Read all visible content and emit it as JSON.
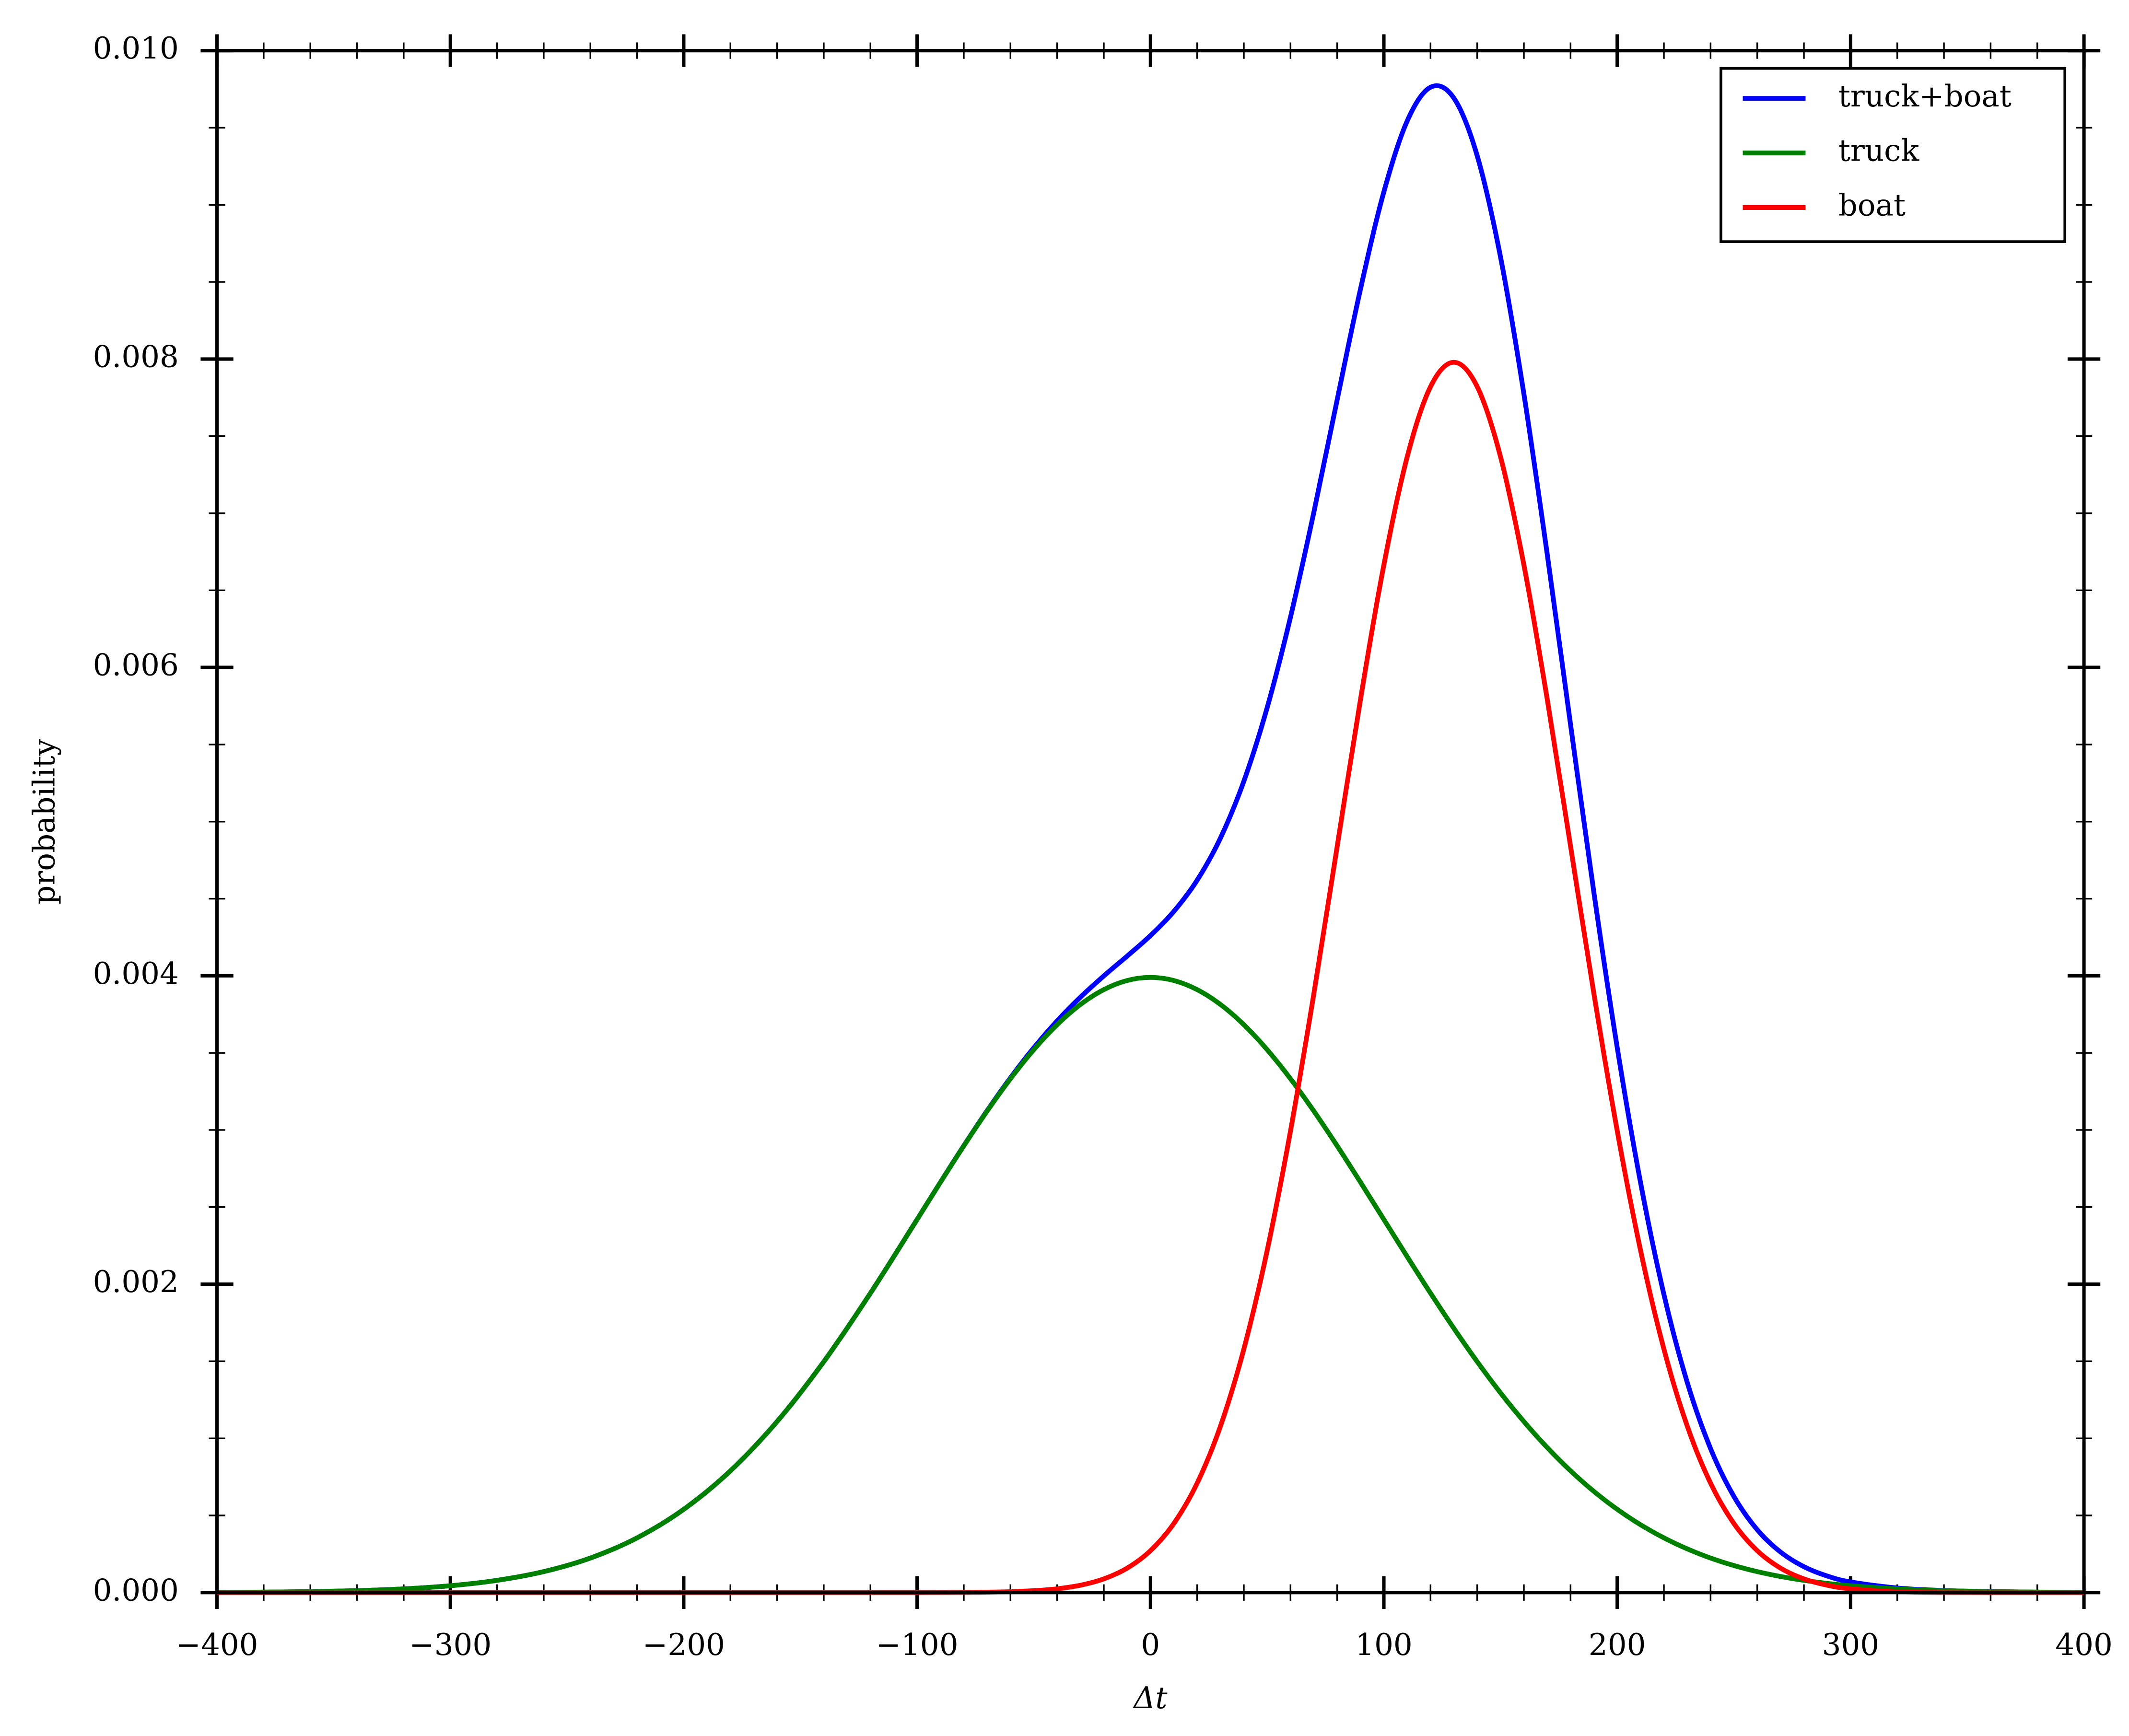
{
  "chart_data": {
    "type": "line",
    "x_label": "Δt",
    "y_label": "probability",
    "x": [
      -400,
      -380,
      -360,
      -340,
      -320,
      -300,
      -280,
      -260,
      -240,
      -220,
      -200,
      -180,
      -160,
      -140,
      -120,
      -100,
      -90,
      -80,
      -70,
      -60,
      -50,
      -40,
      -30,
      -20,
      -10,
      0,
      10,
      20,
      30,
      40,
      50,
      60,
      70,
      80,
      90,
      100,
      110,
      120,
      130,
      140,
      150,
      160,
      170,
      180,
      190,
      200,
      210,
      220,
      230,
      240,
      250,
      260,
      270,
      280,
      290,
      300,
      320,
      340,
      360,
      380,
      400
    ],
    "series": [
      {
        "name": "truck+boat",
        "color": "#0000ff",
        "values": [
          1.3e-06,
          2.9e-06,
          6.1e-06,
          1.23e-05,
          2.38e-05,
          4.43e-05,
          7.92e-05,
          0.0001358,
          0.0002239,
          0.0003547,
          0.0005399,
          0.0007895,
          0.0011092,
          0.0014973,
          0.0019418,
          0.0024199,
          0.0026614,
          0.0028981,
          0.0031252,
          0.003338,
          0.0035329,
          0.0037073,
          0.0038616,
          0.003999,
          0.0041278,
          0.0042611,
          0.0044174,
          0.0046199,
          0.0048938,
          0.0052617,
          0.0057391,
          0.0063267,
          0.0070062,
          0.0077363,
          0.0084547,
          0.0090841,
          0.0095439,
          0.0097626,
          0.0096925,
          0.0093181,
          0.0086606,
          0.0077736,
          0.0067343,
          0.0056289,
          0.0045398,
          0.0035344,
          0.0026582,
          0.0019337,
          0.0013632,
          0.0009334,
          0.0006232,
          0.0004075,
          0.0002625,
          0.0001678,
          0.0001072,
          6.89e-05,
          2.96e-05,
          1.35e-05,
          6.3e-06,
          2.9e-06,
          1.3e-06
        ]
      },
      {
        "name": "truck",
        "color": "#008000",
        "values": [
          1.3e-06,
          2.9e-06,
          6.1e-06,
          1.23e-05,
          2.38e-05,
          4.43e-05,
          7.92e-05,
          0.0001358,
          0.0002239,
          0.0003547,
          0.0005399,
          0.0007895,
          0.0011092,
          0.0014973,
          0.0019418,
          0.0024197,
          0.0026609,
          0.0028969,
          0.0031225,
          0.0033322,
          0.0035207,
          0.0036827,
          0.0038139,
          0.0039104,
          0.0039695,
          0.0039894,
          0.0039695,
          0.0039104,
          0.0038139,
          0.0036827,
          0.0035207,
          0.0033322,
          0.0031225,
          0.0028969,
          0.0026609,
          0.0024197,
          0.0021785,
          0.0019418,
          0.0017137,
          0.0014973,
          0.0012952,
          0.0011092,
          0.0009405,
          0.0007895,
          0.0006561,
          0.0005399,
          0.0004398,
          0.0003547,
          0.0002833,
          0.0002239,
          0.0001753,
          0.0001358,
          0.0001042,
          7.92e-05,
          5.95e-05,
          4.43e-05,
          2.38e-05,
          1.23e-05,
          6.1e-06,
          2.9e-06,
          1.3e-06
        ]
      },
      {
        "name": "boat",
        "color": "#ff0000",
        "values": [
          0,
          0,
          0,
          0,
          0,
          0,
          0,
          0,
          0,
          0,
          0,
          0,
          0,
          0,
          0,
          2e-07,
          5e-07,
          1.2e-06,
          2.7e-06,
          5.8e-06,
          1.22e-05,
          2.46e-05,
          4.77e-05,
          8.86e-05,
          0.0001583,
          0.0002717,
          0.0004479,
          0.0007095,
          0.0010799,
          0.001579,
          0.0022184,
          0.0029945,
          0.0038837,
          0.0048394,
          0.0057938,
          0.0066644,
          0.0073654,
          0.0078208,
          0.0079788,
          0.0078208,
          0.0073654,
          0.0066644,
          0.0057938,
          0.0048394,
          0.0038837,
          0.0029945,
          0.0022184,
          0.001579,
          0.0010799,
          0.0007095,
          0.0004479,
          0.0002717,
          0.0001583,
          8.86e-05,
          4.77e-05,
          2.46e-05,
          5.8e-06,
          1.2e-06,
          2e-07,
          0,
          0
        ]
      }
    ],
    "xlim": [
      -400,
      400
    ],
    "ylim": [
      0,
      0.01
    ],
    "xticks": [
      {
        "value": -400,
        "label": "−400"
      },
      {
        "value": -300,
        "label": "−300"
      },
      {
        "value": -200,
        "label": "−200"
      },
      {
        "value": -100,
        "label": "−100"
      },
      0,
      100,
      200,
      300,
      400
    ],
    "yticks": [
      {
        "value": 0,
        "label": "0.000"
      },
      {
        "value": 0.002,
        "label": "0.002"
      },
      {
        "value": 0.004,
        "label": "0.004"
      },
      {
        "value": 0.006,
        "label": "0.006"
      },
      {
        "value": 0.008,
        "label": "0.008"
      },
      {
        "value": 0.01,
        "label": "0.010"
      }
    ],
    "grid": false,
    "legend": "upper right"
  }
}
